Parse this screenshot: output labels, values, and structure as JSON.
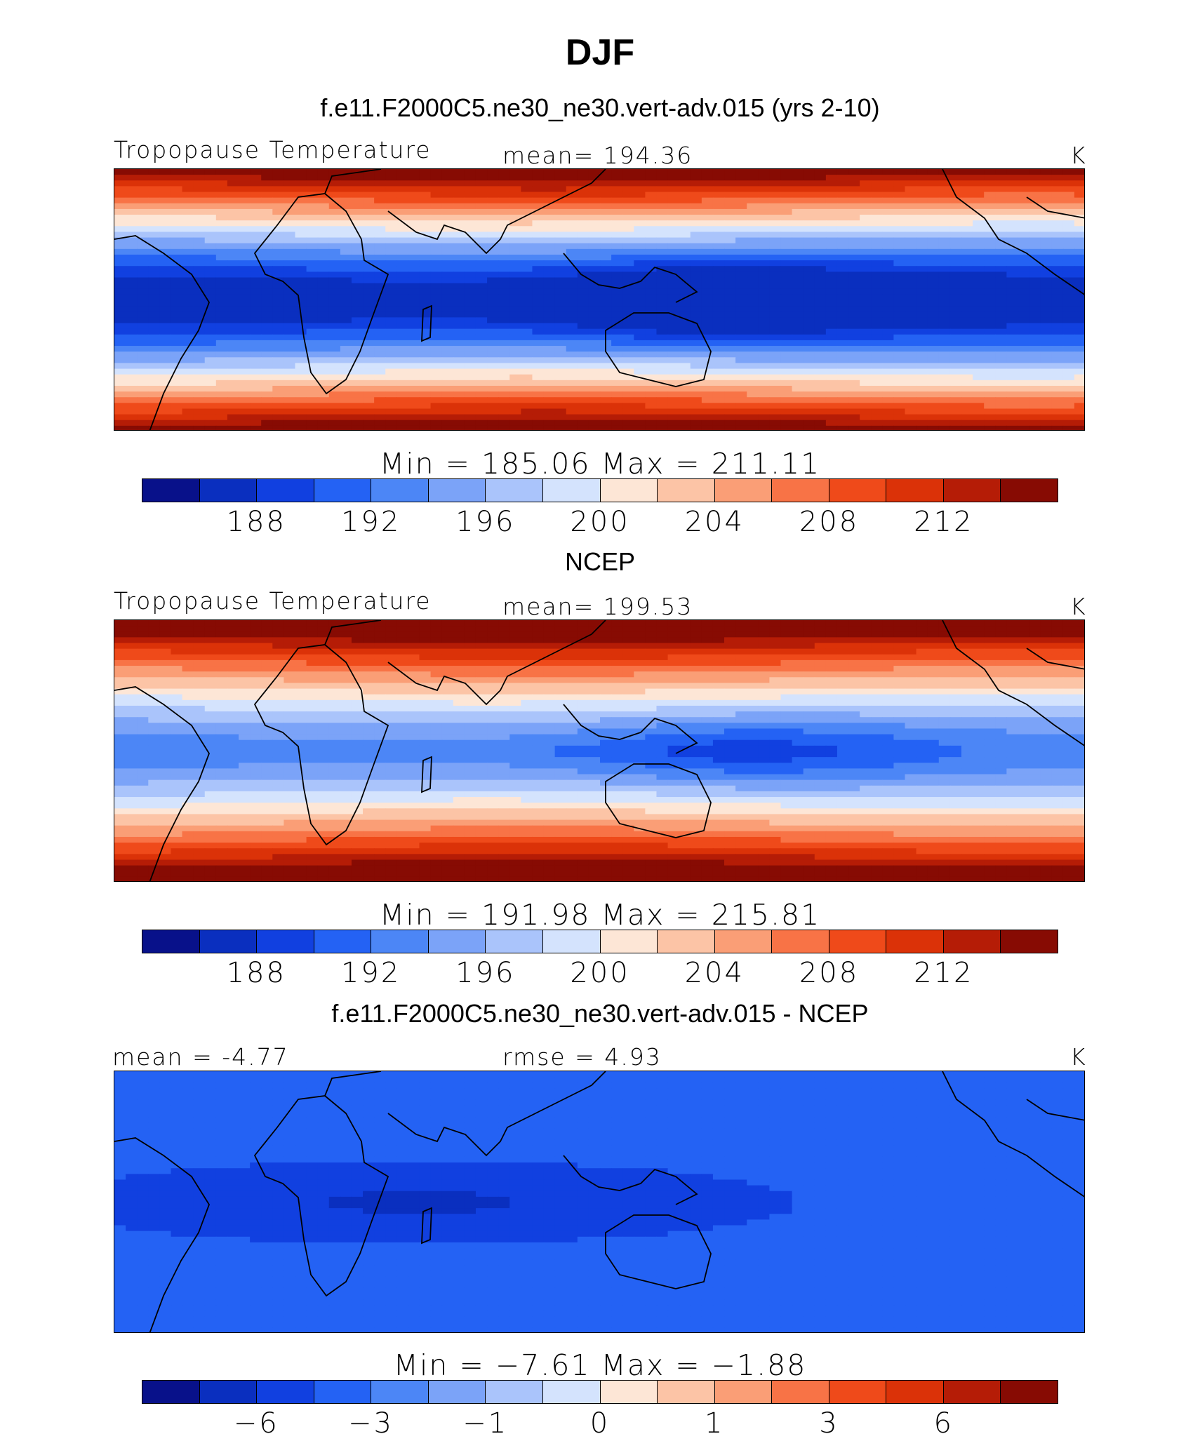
{
  "title": "DJF",
  "panels": [
    {
      "title": "f.e11.F2000C5.ne30_ne30.vert-adv.015 (yrs 2-10)",
      "left_label": "Tropopause Temperature",
      "center_label": "mean=  194.36",
      "units": "K",
      "minmax": "Min  =  185.06  Max  =  211.11",
      "field": "model"
    },
    {
      "title": "NCEP",
      "left_label": "Tropopause Temperature",
      "center_label": "mean=  199.53",
      "units": "K",
      "minmax": "Min  =  191.98  Max  =  215.81",
      "field": "obs"
    },
    {
      "title": "f.e11.F2000C5.ne30_ne30.vert-adv.015 - NCEP",
      "left_label": "mean =   -4.77",
      "center_label": "rmse =     4.93",
      "units": "K",
      "minmax": "Min  =   −7.61  Max  =   −1.88",
      "field": "diff"
    }
  ],
  "colorbar_colors": [
    "#08118a",
    "#0a2fbf",
    "#1140e0",
    "#2462f4",
    "#4c86f6",
    "#7ba3f8",
    "#aac4fb",
    "#d4e3fd",
    "#fde6d6",
    "#fcc4a6",
    "#fa9e76",
    "#f87346",
    "#ef4a1a",
    "#db3208",
    "#b51c06",
    "#870b03"
  ],
  "colorbar_ticks": [
    [
      "188",
      "192",
      "196",
      "200",
      "204",
      "208",
      "212"
    ],
    [
      "188",
      "192",
      "196",
      "200",
      "204",
      "208",
      "212"
    ],
    [
      "−6",
      "−3",
      "−1",
      "0",
      "1",
      "3",
      "6"
    ]
  ]
}
